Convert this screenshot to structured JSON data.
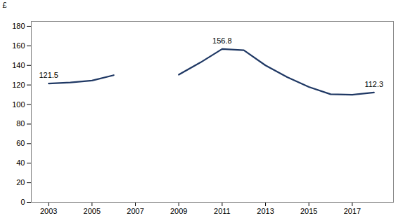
{
  "chart_data": {
    "type": "line",
    "x": [
      2003,
      2004,
      2005,
      2006,
      2007,
      2009,
      2010,
      2011,
      2012,
      2013,
      2014,
      2015,
      2016,
      2017,
      2018
    ],
    "values": [
      121.5,
      122.5,
      124.5,
      130.0,
      null,
      130.5,
      143.0,
      156.8,
      155.5,
      140.0,
      128.0,
      118.0,
      110.5,
      110.0,
      112.3
    ],
    "color": "#1F3864",
    "xlim": [
      2002.2,
      2018.9
    ],
    "ylim": [
      0,
      185
    ],
    "xticks": [
      2003,
      2005,
      2007,
      2009,
      2011,
      2013,
      2015,
      2017
    ],
    "yticks": [
      0,
      20,
      40,
      60,
      80,
      100,
      120,
      140,
      160,
      180
    ],
    "ylabel": "£",
    "grid": false,
    "annotations": [
      {
        "x": 2003,
        "y": 121.5,
        "text": "121.5"
      },
      {
        "x": 2011,
        "y": 156.8,
        "text": "156.8"
      },
      {
        "x": 2018,
        "y": 112.3,
        "text": "112.3"
      }
    ]
  }
}
